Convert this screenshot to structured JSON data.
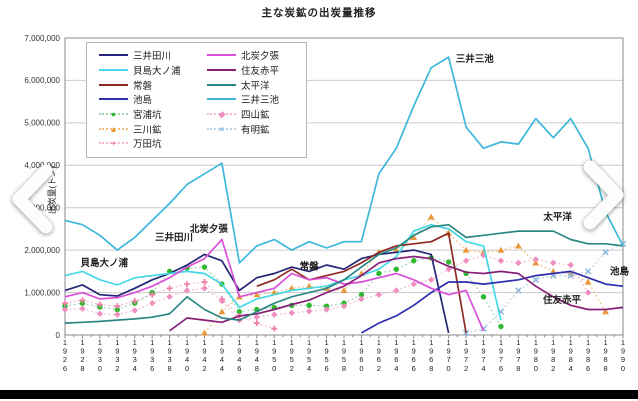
{
  "page": {
    "title": "主な炭鉱の出炭量推移"
  },
  "icons": {
    "prev": "chevron-left-icon",
    "next": "chevron-right-icon"
  },
  "y_axis": {
    "title": "出炭量(トン)",
    "tick_labels": [
      "0",
      "1,000,000",
      "2,000,000",
      "3,000,000",
      "4,000,000",
      "5,000,000",
      "6,000,000",
      "7,000,000"
    ]
  },
  "chart_data": {
    "type": "line",
    "title": "主な炭鉱の出炭量推移",
    "ylabel": "出炭量(トン)",
    "xlabel": "",
    "ylim": [
      0,
      7000000
    ],
    "grid": true,
    "legend_position": "upper-left-box",
    "x": [
      1926,
      1928,
      1930,
      1932,
      1934,
      1936,
      1938,
      1940,
      1942,
      1944,
      1946,
      1948,
      1950,
      1952,
      1954,
      1956,
      1958,
      1960,
      1962,
      1964,
      1966,
      1968,
      1970,
      1972,
      1974,
      1976,
      1978,
      1980,
      1982,
      1984,
      1986,
      1988,
      1990
    ],
    "series": [
      {
        "key": "mitsui-tagawa",
        "name": "三井田川",
        "color": "#262678",
        "style": "solid",
        "marker": "none",
        "values": [
          1050000,
          1180000,
          950000,
          920000,
          1100000,
          1300000,
          1450000,
          1650000,
          1900000,
          1750000,
          1050000,
          1350000,
          1450000,
          1600000,
          1500000,
          1650000,
          1550000,
          1800000,
          1900000,
          1950000,
          2000000,
          1900000,
          50000,
          null,
          null,
          null,
          null,
          null,
          null,
          null,
          null,
          null,
          null
        ]
      },
      {
        "key": "kaijima-onoura",
        "name": "貝島大ノ浦",
        "color": "#45d9e6",
        "style": "solid",
        "marker": "none",
        "values": [
          1400000,
          1500000,
          1300000,
          1180000,
          1350000,
          1400000,
          1450000,
          1500000,
          1450000,
          1200000,
          650000,
          850000,
          950000,
          1050000,
          1100000,
          1150000,
          1300000,
          1400000,
          1550000,
          1850000,
          2450000,
          2600000,
          2500000,
          2200000,
          2100000,
          350000,
          null,
          null,
          null,
          null,
          null,
          null,
          null
        ]
      },
      {
        "key": "joban",
        "name": "常磐",
        "color": "#8e2a24",
        "style": "solid",
        "marker": "none",
        "values": [
          null,
          null,
          null,
          null,
          null,
          null,
          null,
          null,
          null,
          null,
          null,
          1150000,
          1300000,
          1550000,
          1300000,
          1400000,
          1500000,
          1700000,
          1950000,
          2100000,
          2150000,
          2200000,
          2400000,
          50000,
          null,
          null,
          null,
          null,
          null,
          null,
          null,
          null,
          null
        ]
      },
      {
        "key": "ikeshima",
        "name": "池島",
        "color": "#2f2fae",
        "style": "solid",
        "marker": "none",
        "values": [
          null,
          null,
          null,
          null,
          null,
          null,
          null,
          null,
          null,
          null,
          null,
          null,
          null,
          null,
          null,
          null,
          null,
          50000,
          280000,
          450000,
          700000,
          1000000,
          1250000,
          1250000,
          1200000,
          1250000,
          1300000,
          1400000,
          1450000,
          1500000,
          1350000,
          1200000,
          1150000
        ]
      },
      {
        "key": "miyaura-ko",
        "name": "宮浦坑",
        "color": "#9fd4ae",
        "marker_color": "#2db82d",
        "style": "dotted",
        "marker": "circle",
        "values": [
          680000,
          750000,
          660000,
          600000,
          750000,
          1000000,
          1500000,
          1580000,
          1600000,
          1200000,
          550000,
          600000,
          650000,
          700000,
          700000,
          680000,
          750000,
          950000,
          1450000,
          1550000,
          1750000,
          1820000,
          1720000,
          1450000,
          900000,
          200000,
          null,
          null,
          null,
          null,
          null,
          null,
          null
        ]
      },
      {
        "key": "mikawa-ko",
        "name": "三川鉱",
        "color": "#f0c080",
        "marker_color": "#e8973a",
        "style": "dotted",
        "marker": "triangle",
        "values": [
          null,
          null,
          null,
          null,
          null,
          null,
          null,
          null,
          50000,
          550000,
          900000,
          950000,
          1000000,
          1100000,
          1150000,
          1100000,
          1050000,
          1450000,
          1950000,
          2000000,
          2300000,
          2780000,
          2400000,
          2000000,
          1950000,
          2000000,
          2100000,
          1700000,
          1500000,
          1450000,
          1250000,
          550000,
          null
        ]
      },
      {
        "key": "manda-ko",
        "name": "万田坑",
        "color": "#f4b8cc",
        "marker_color": "#ef7fa7",
        "style": "dotted",
        "marker": "plus",
        "values": [
          750000,
          820000,
          720000,
          680000,
          800000,
          950000,
          1100000,
          1200000,
          1250000,
          850000,
          450000,
          280000,
          150000,
          null,
          null,
          null,
          null,
          null,
          null,
          null,
          null,
          null,
          null,
          null,
          null,
          null,
          null,
          null,
          null,
          null,
          null,
          null,
          null
        ]
      },
      {
        "key": "hokutan-yubari",
        "name": "北炭夕張",
        "color": "#d94fd9",
        "style": "solid",
        "marker": "none",
        "values": [
          900000,
          1000000,
          850000,
          880000,
          1000000,
          1150000,
          1350000,
          1600000,
          1800000,
          2250000,
          900000,
          1000000,
          1100000,
          1450000,
          1300000,
          1350000,
          1200000,
          1250000,
          1350000,
          1450000,
          1300000,
          1100000,
          950000,
          1050000,
          100000,
          null,
          null,
          null,
          null,
          null,
          null,
          null,
          null
        ]
      },
      {
        "key": "sumitomo-akabira",
        "name": "住友赤平",
        "color": "#871f78",
        "style": "solid",
        "marker": "none",
        "values": [
          null,
          null,
          null,
          null,
          null,
          null,
          100000,
          400000,
          350000,
          300000,
          450000,
          500000,
          600000,
          720000,
          820000,
          1000000,
          1150000,
          1400000,
          1700000,
          1800000,
          1850000,
          1800000,
          1620000,
          1480000,
          1450000,
          1500000,
          1450000,
          1150000,
          900000,
          700000,
          600000,
          600000,
          650000
        ]
      },
      {
        "key": "taiheiyo",
        "name": "太平洋",
        "color": "#2d8784",
        "style": "solid",
        "marker": "none",
        "values": [
          280000,
          300000,
          320000,
          350000,
          380000,
          420000,
          500000,
          900000,
          600000,
          400000,
          350000,
          550000,
          750000,
          900000,
          1000000,
          1100000,
          1300000,
          1600000,
          1900000,
          2050000,
          2350000,
          2550000,
          2600000,
          2300000,
          2350000,
          2400000,
          2450000,
          2450000,
          2450000,
          2250000,
          2150000,
          2150000,
          2100000
        ]
      },
      {
        "key": "mitsui-miike",
        "name": "三井三池",
        "color": "#3db7dc",
        "style": "solid",
        "marker": "none",
        "values": [
          2700000,
          2600000,
          2350000,
          2000000,
          2300000,
          2700000,
          3100000,
          3550000,
          3800000,
          4050000,
          1700000,
          2100000,
          2250000,
          2000000,
          2200000,
          2050000,
          2200000,
          2200000,
          3800000,
          4400000,
          5400000,
          6300000,
          6550000,
          4900000,
          4400000,
          4550000,
          4500000,
          5100000,
          4650000,
          5100000,
          4400000,
          2900000,
          2100000
        ]
      },
      {
        "key": "yotsuyama-ko",
        "name": "四山鉱",
        "color": "#f4b8d4",
        "marker_color": "#ef8fc0",
        "style": "dotted",
        "marker": "diamond",
        "values": [
          600000,
          620000,
          500000,
          480000,
          580000,
          750000,
          900000,
          1050000,
          1100000,
          800000,
          350000,
          420000,
          480000,
          520000,
          560000,
          600000,
          680000,
          850000,
          950000,
          1050000,
          1200000,
          1300000,
          1550000,
          1750000,
          1880000,
          1750000,
          1700000,
          1780000,
          1700000,
          1650000,
          1000000,
          null,
          null
        ]
      },
      {
        "key": "ariake-ko",
        "name": "有明鉱",
        "color": "#b8d0e8",
        "marker_color": "#8fb8dc",
        "style": "dotted",
        "marker": "x",
        "values": [
          null,
          null,
          null,
          null,
          null,
          null,
          null,
          null,
          null,
          null,
          null,
          null,
          null,
          null,
          null,
          null,
          null,
          null,
          null,
          null,
          null,
          null,
          null,
          50000,
          150000,
          550000,
          1050000,
          1300000,
          1400000,
          1400000,
          1500000,
          1950000,
          2150000
        ]
      }
    ],
    "legend_columns": [
      [
        0,
        1,
        2,
        3,
        4,
        5,
        6
      ],
      [
        7,
        8,
        9,
        10,
        11,
        12
      ]
    ],
    "annotations": [
      {
        "text": "貝島大ノ浦",
        "year": 1930.5,
        "value": 1700000
      },
      {
        "text": "三井田川",
        "year": 1938.5,
        "value": 2300000
      },
      {
        "text": "北炭夕張",
        "year": 1942.5,
        "value": 2500000
      },
      {
        "text": "常磐",
        "year": 1954.0,
        "value": 1620000
      },
      {
        "text": "三井三池",
        "year": 1973.0,
        "value": 6500000
      },
      {
        "text": "太平洋",
        "year": 1982.5,
        "value": 2780000
      },
      {
        "text": "住友赤平",
        "year": 1983.0,
        "value": 830000
      },
      {
        "text": "池島",
        "year": 1989.6,
        "value": 1500000
      }
    ]
  }
}
